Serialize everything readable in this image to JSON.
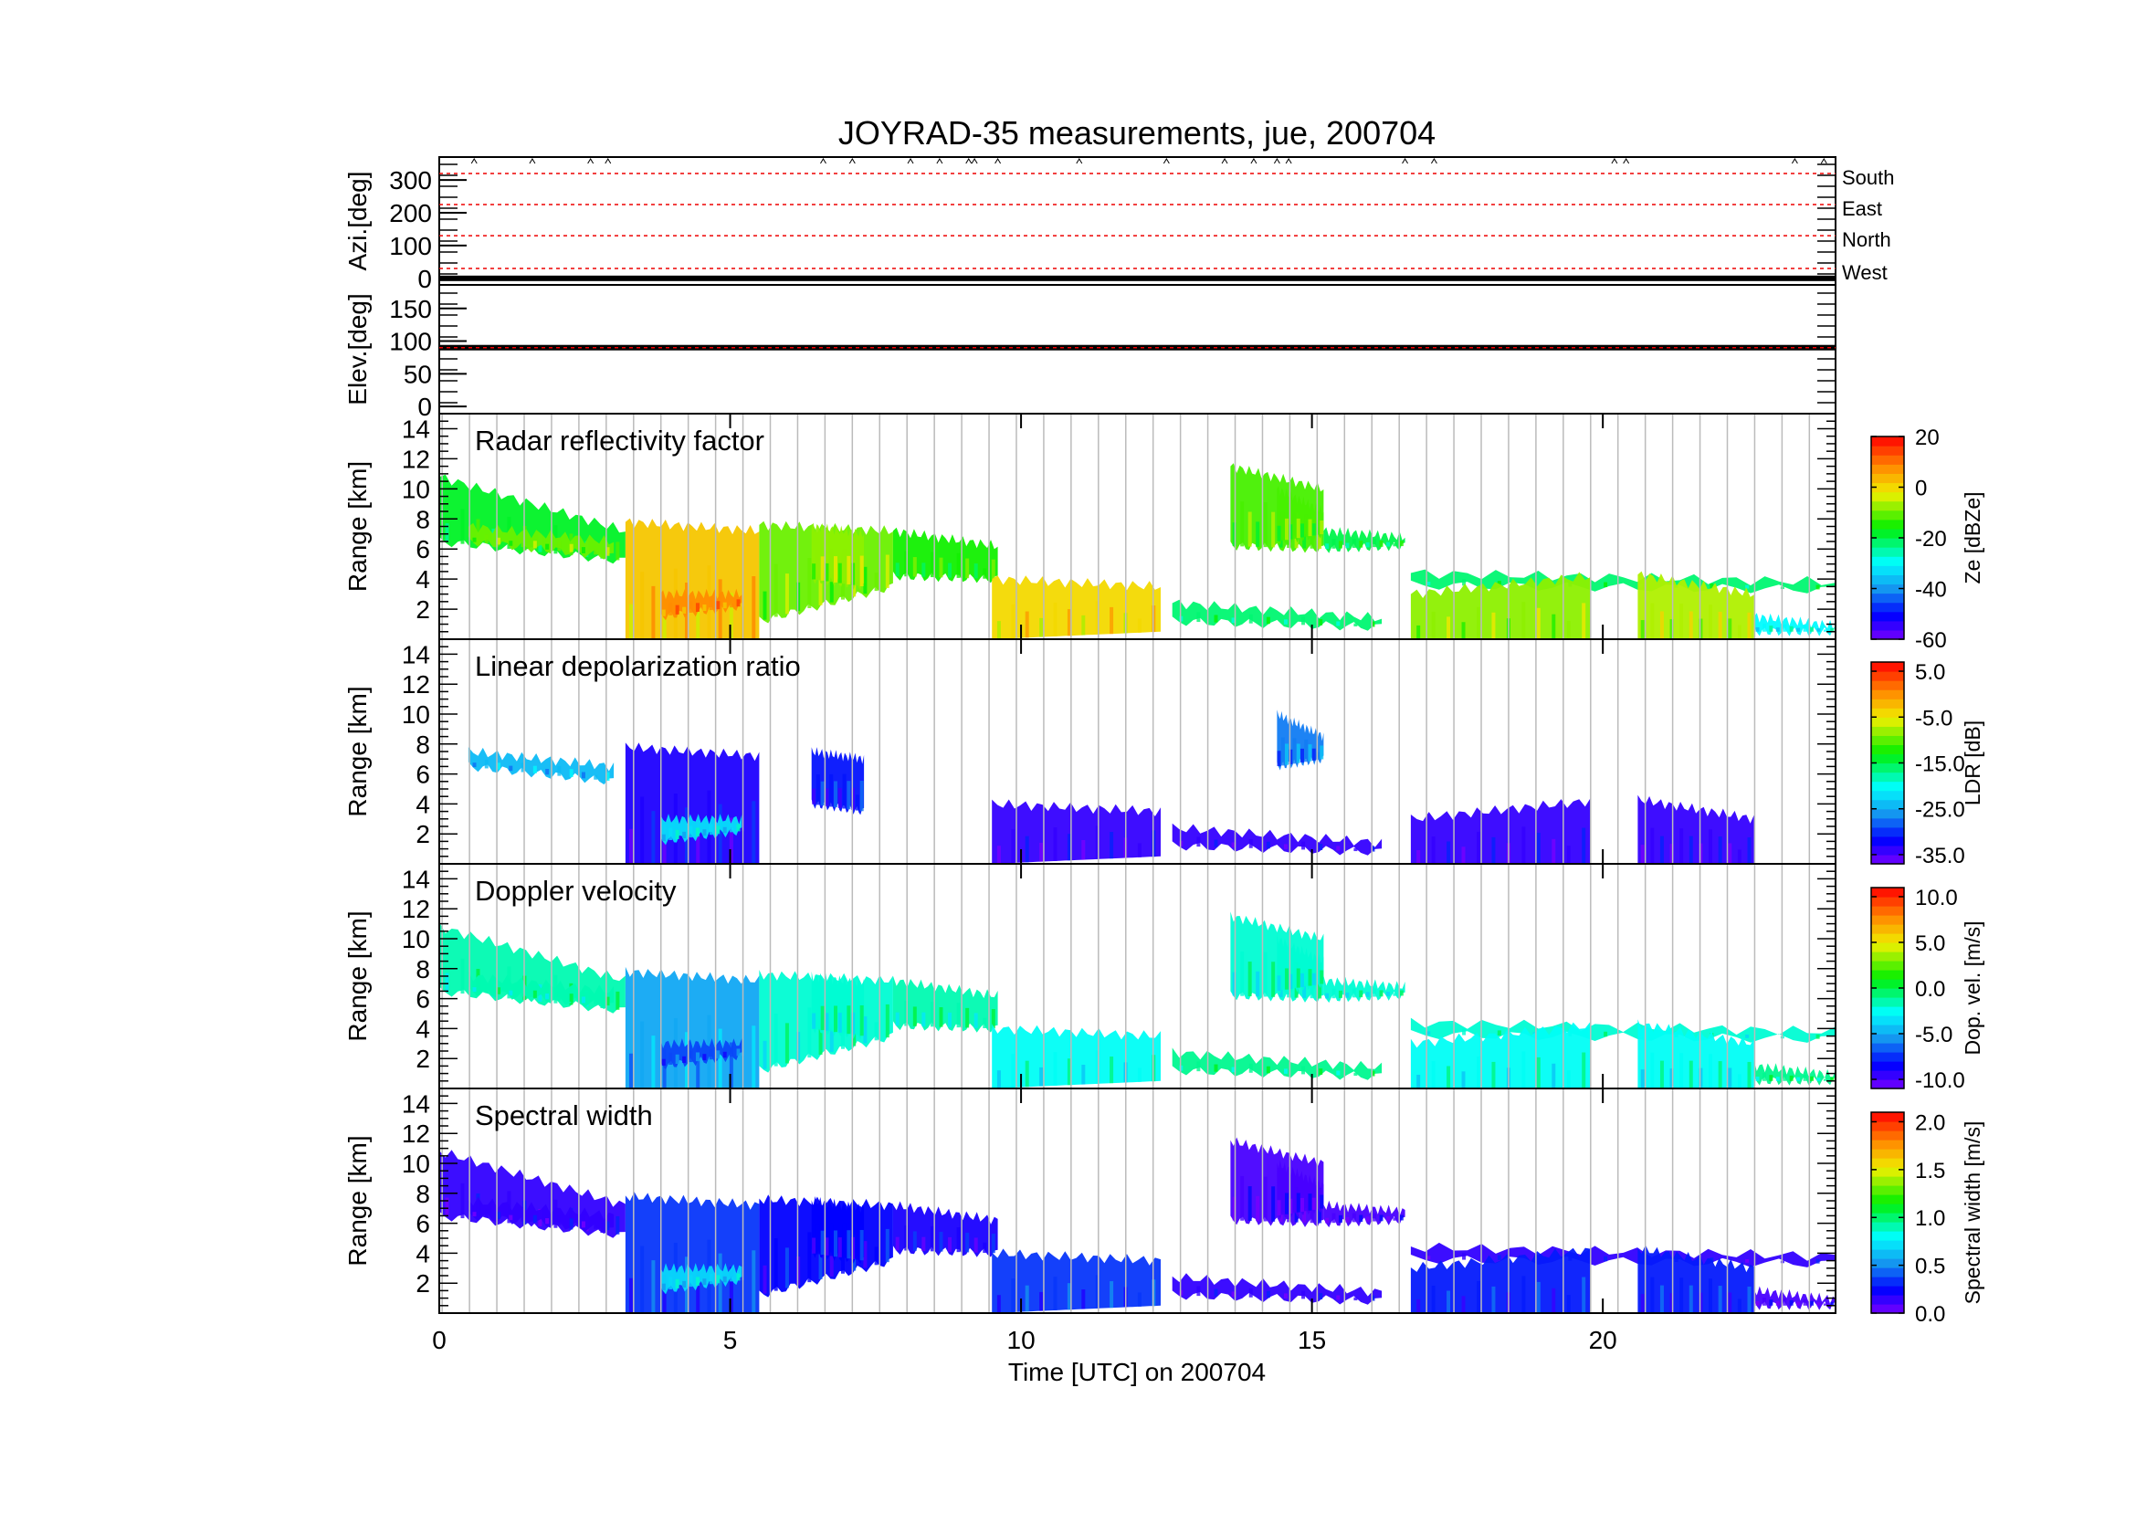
{
  "chart_data": {
    "type": "heatmap",
    "title": "JOYRAD-35 measurements, jue, 200704",
    "xlabel": "Time [UTC] on 200704",
    "xlim": [
      0,
      24
    ],
    "xticks": [
      "0",
      "5",
      "10",
      "15",
      "20"
    ],
    "xtick_values": [
      0,
      5,
      10,
      15,
      20
    ],
    "scan_panels": [
      {
        "id": "azi",
        "ylabel": "Azi.[deg]",
        "ylim": [
          -20,
          370
        ],
        "yticks": [
          0,
          100,
          200,
          300
        ],
        "ytick_labels": [
          "0",
          "100",
          "200",
          "300"
        ],
        "reference_lines": [
          30,
          130,
          225,
          320
        ],
        "direction_labels": [
          "South",
          "East",
          "North",
          "West"
        ],
        "trace_value": 0
      },
      {
        "id": "elev",
        "ylabel": "Elev.[deg]",
        "ylim": [
          -11,
          186
        ],
        "yticks": [
          0,
          50,
          100,
          150
        ],
        "ytick_labels": [
          "0",
          "50",
          "100",
          "150"
        ],
        "reference_lines": [
          90
        ],
        "trace_value": 90
      }
    ],
    "panels": [
      {
        "id": "ze",
        "title": "Radar reflectivity factor",
        "ylabel": "Range [km]",
        "ylim": [
          0,
          15
        ],
        "cbar": {
          "label": "Ze [dBZe]",
          "range": [
            -60,
            20
          ],
          "ticks": [
            "20",
            "0",
            "-20",
            "-40",
            "-60"
          ],
          "tick_values": [
            20,
            0,
            -20,
            -40,
            -60
          ]
        }
      },
      {
        "id": "ldr",
        "title": "Linear depolarization ratio",
        "ylabel": "Range [km]",
        "ylim": [
          0,
          15
        ],
        "cbar": {
          "label": "LDR [dB]",
          "range": [
            -37,
            7
          ],
          "ticks": [
            "5.0",
            "-5.0",
            "-15.0",
            "-25.0",
            "-35.0"
          ],
          "tick_values": [
            5,
            -5,
            -15,
            -25,
            -35
          ]
        }
      },
      {
        "id": "vel",
        "title": "Doppler velocity",
        "ylabel": "Range [km]",
        "ylim": [
          0,
          15
        ],
        "cbar": {
          "label": "Dop. vel. [m/s]",
          "range": [
            -11,
            11
          ],
          "ticks": [
            "10.0",
            "5.0",
            "0.0",
            "-5.0",
            "-10.0"
          ],
          "tick_values": [
            10,
            5,
            0,
            -5,
            -10
          ]
        }
      },
      {
        "id": "sw",
        "title": "Spectral width",
        "ylabel": "Range [km]",
        "ylim": [
          0,
          15
        ],
        "cbar": {
          "label": "Spectral width [m/s]",
          "range": [
            0,
            2.1
          ],
          "ticks": [
            "2.0",
            "1.5",
            "1.0",
            "0.5",
            "0.0"
          ],
          "tick_values": [
            2,
            1.5,
            1,
            0.5,
            0
          ]
        }
      }
    ],
    "range_ticks": [
      2,
      4,
      6,
      8,
      10,
      12,
      14
    ],
    "range_tick_labels": [
      "2",
      "4",
      "6",
      "8",
      "10",
      "12",
      "14"
    ],
    "echo_regions": [
      {
        "t": [
          0,
          3.2
        ],
        "bottom": [
          6.5,
          5.2
        ],
        "top": [
          10.8,
          7.2
        ],
        "ze": -18,
        "ldr": null,
        "vel": -1.5,
        "sw": 0.15
      },
      {
        "t": [
          0.5,
          3.0
        ],
        "bottom": [
          6.5,
          5.5
        ],
        "top": [
          7.5,
          6.5
        ],
        "ze": -10,
        "ldr": -24,
        "vel": -1.5,
        "sw": 0.15
      },
      {
        "t": [
          3.2,
          5.5
        ],
        "bottom": [
          0,
          0
        ],
        "top": [
          7.8,
          7.2
        ],
        "ze": 2,
        "ldr": -33,
        "vel": -5,
        "sw": 0.35
      },
      {
        "t": [
          3.8,
          5.2
        ],
        "bottom": [
          1.5,
          2.2
        ],
        "top": [
          3.0,
          3.0
        ],
        "ze": 8,
        "ldr": -22,
        "vel": -7,
        "sw": 0.7
      },
      {
        "t": [
          5.5,
          7.8
        ],
        "bottom": [
          1.2,
          3.5
        ],
        "top": [
          7.6,
          7.2
        ],
        "ze": -10,
        "ldr": null,
        "vel": -2,
        "sw": 0.25
      },
      {
        "t": [
          6.4,
          7.3
        ],
        "bottom": [
          4.0,
          3.5
        ],
        "top": [
          7.5,
          7.0
        ],
        "ze": -8,
        "ldr": -31,
        "vel": -2,
        "sw": 0.25
      },
      {
        "t": [
          7.8,
          9.6
        ],
        "bottom": [
          4.2,
          4.0
        ],
        "top": [
          7.2,
          6.2
        ],
        "ze": -15,
        "ldr": null,
        "vel": -1.5,
        "sw": 0.2
      },
      {
        "t": [
          9.5,
          12.4
        ],
        "bottom": [
          0,
          0.5
        ],
        "top": [
          4.0,
          3.5
        ],
        "ze": 0,
        "ldr": -34,
        "vel": -2.5,
        "sw": 0.35
      },
      {
        "t": [
          12.6,
          16.2
        ],
        "bottom": [
          1.2,
          0.8
        ],
        "top": [
          2.4,
          1.4
        ],
        "ze": -22,
        "ldr": -34,
        "vel": -1,
        "sw": 0.15
      },
      {
        "t": [
          13.6,
          15.2
        ],
        "bottom": [
          6.2,
          6.0
        ],
        "top": [
          11.5,
          10.0
        ],
        "ze": -12,
        "ldr": null,
        "vel": -2,
        "sw": 0.1
      },
      {
        "t": [
          15.2,
          16.6
        ],
        "bottom": [
          6.0,
          6.2
        ],
        "top": [
          7.2,
          6.8
        ],
        "ze": -20,
        "ldr": null,
        "vel": -2,
        "sw": 0.1
      },
      {
        "t": [
          14.4,
          15.2
        ],
        "bottom": [
          6.5,
          7.0
        ],
        "top": [
          10.0,
          8.5
        ],
        "ze": -12,
        "ldr": -27,
        "vel": -2,
        "sw": 0.1
      },
      {
        "t": [
          16.7,
          24
        ],
        "bottom": [
          3.6,
          3.3
        ],
        "top": [
          4.4,
          3.8
        ],
        "ze": -22,
        "ldr": null,
        "vel": -2,
        "sw": 0.15
      },
      {
        "t": [
          16.7,
          19.8
        ],
        "bottom": [
          0,
          0
        ],
        "top": [
          3.0,
          4.2
        ],
        "ze": -8,
        "ldr": -34,
        "vel": -2.5,
        "sw": 0.3
      },
      {
        "t": [
          20.6,
          22.6
        ],
        "bottom": [
          0,
          0
        ],
        "top": [
          4.3,
          3.0
        ],
        "ze": -6,
        "ldr": -34,
        "vel": -2.5,
        "sw": 0.3
      },
      {
        "t": [
          22.6,
          24
        ],
        "bottom": [
          0.5,
          0.5
        ],
        "top": [
          1.5,
          0.9
        ],
        "ze": -30,
        "ldr": null,
        "vel": -1,
        "sw": 0.1
      }
    ]
  }
}
